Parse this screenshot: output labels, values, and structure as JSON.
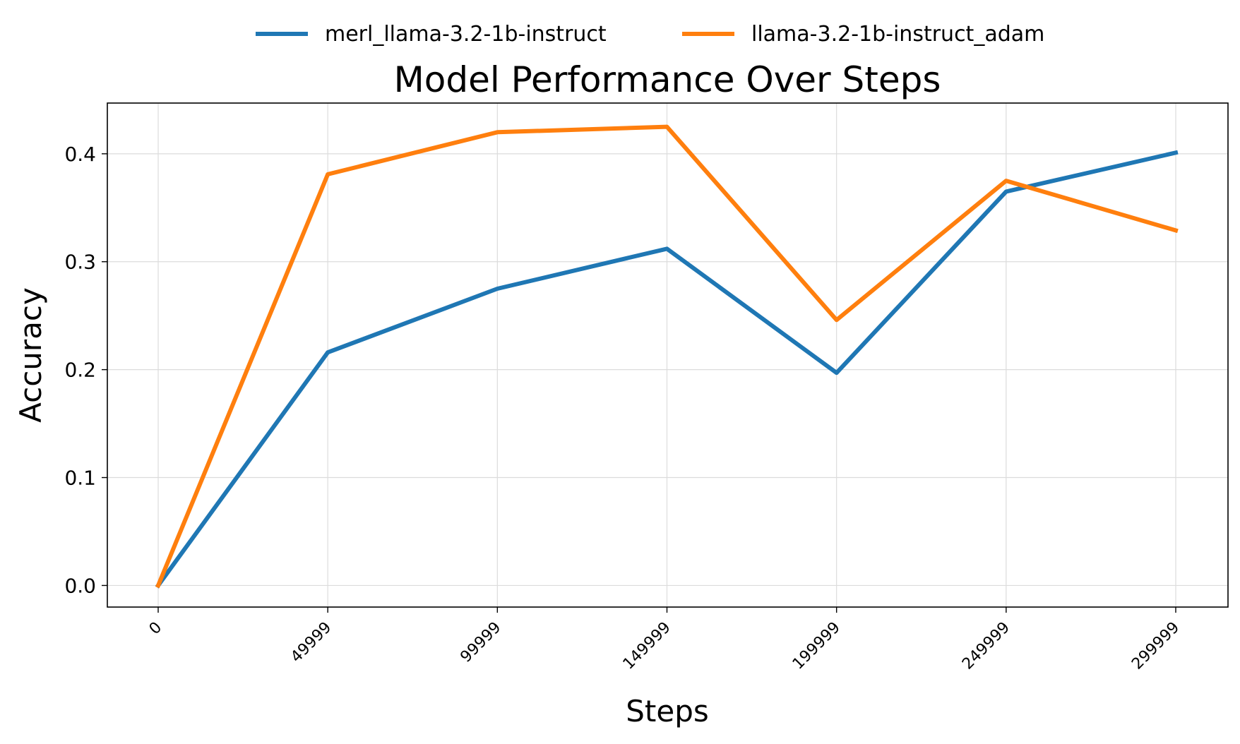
{
  "chart_data": {
    "type": "line",
    "title": "Model Performance Over Steps",
    "xlabel": "Steps",
    "ylabel": "Accuracy",
    "categories": [
      "0",
      "49999",
      "99999",
      "149999",
      "199999",
      "249999",
      "299999"
    ],
    "yticks": [
      "0.0",
      "0.1",
      "0.2",
      "0.3",
      "0.4"
    ],
    "ylim": [
      -0.02,
      0.447
    ],
    "grid": true,
    "legend_position": "top-center",
    "series": [
      {
        "name": "merl_llama-3.2-1b-instruct",
        "color": "#1f77b4",
        "values": [
          0.0,
          0.216,
          0.275,
          0.312,
          0.197,
          0.365,
          0.401
        ]
      },
      {
        "name": "llama-3.2-1b-instruct_adam",
        "color": "#ff7f0e",
        "values": [
          0.0,
          0.381,
          0.42,
          0.425,
          0.246,
          0.375,
          0.329
        ]
      }
    ]
  }
}
